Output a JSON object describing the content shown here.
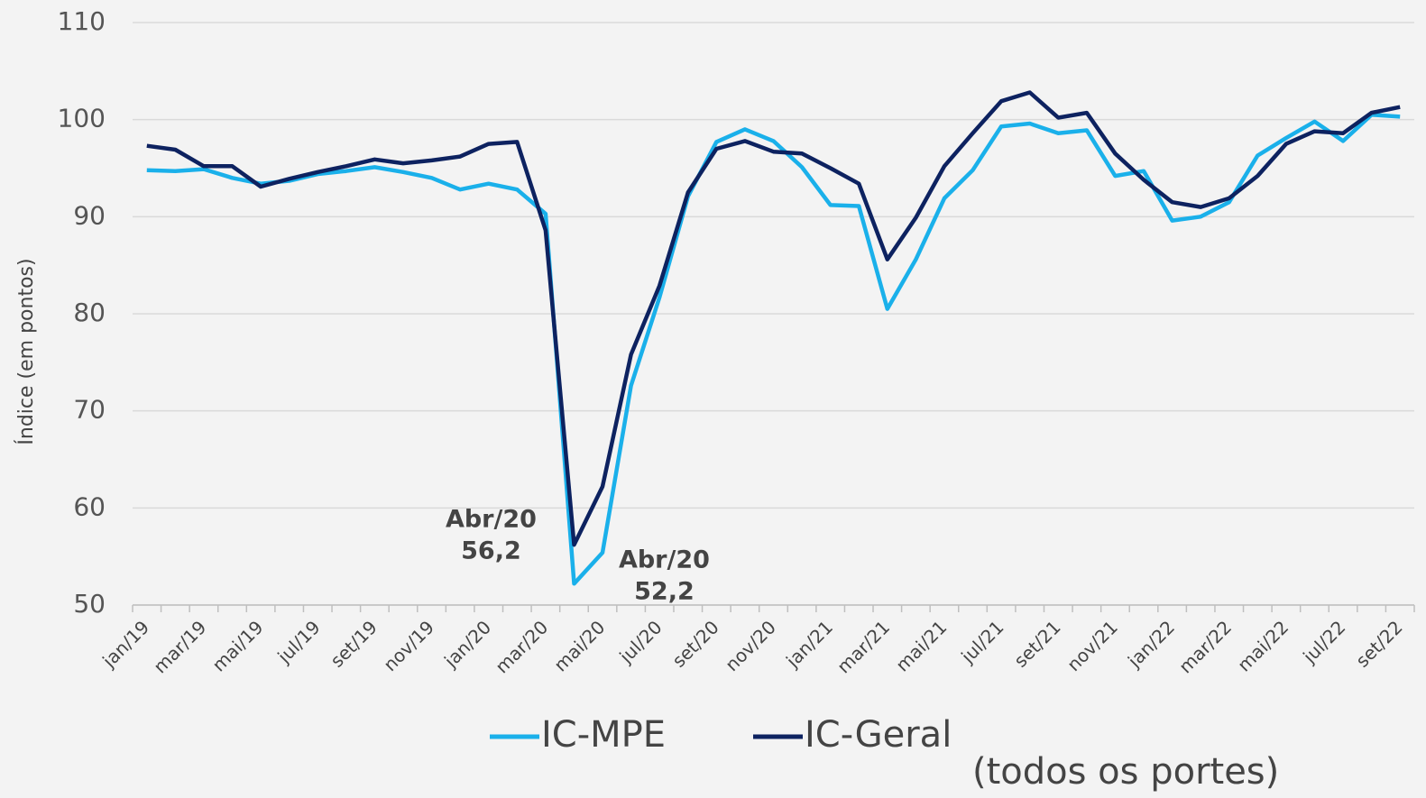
{
  "chart_data": {
    "type": "line",
    "y_axis_label": "Índice (em pontos)",
    "categories": [
      "jan/19",
      null,
      "mar/19",
      null,
      "mai/19",
      null,
      "jul/19",
      null,
      "set/19",
      null,
      "nov/19",
      null,
      "jan/20",
      null,
      "mar/20",
      null,
      "mai/20",
      null,
      "jul/20",
      null,
      "set/20",
      null,
      "nov/20",
      null,
      "jan/21",
      null,
      "mar/21",
      null,
      "mai/21",
      null,
      "jul/21",
      null,
      "set/21",
      null,
      "nov/21",
      null,
      "jan/22",
      null,
      "mar/22",
      null,
      "mai/22",
      null,
      "jul/22",
      null,
      "set/22"
    ],
    "series": [
      {
        "name": "IC-MPE",
        "color": "#1ab0ea",
        "values": [
          94.8,
          94.7,
          94.9,
          94.0,
          93.4,
          93.7,
          94.4,
          94.7,
          95.1,
          94.6,
          94.0,
          92.8,
          93.4,
          92.8,
          90.3,
          52.2,
          55.4,
          72.6,
          81.7,
          92.1,
          97.7,
          99.0,
          97.8,
          95.1,
          91.2,
          91.1,
          80.5,
          85.6,
          91.9,
          94.8,
          99.3,
          99.6,
          98.6,
          98.9,
          94.2,
          94.7,
          89.6,
          90.0,
          91.5,
          96.3,
          98.1,
          99.8,
          97.8,
          100.5,
          100.3
        ]
      },
      {
        "name": "IC-Geral",
        "color": "#0d2260",
        "values": [
          97.3,
          96.9,
          95.2,
          95.2,
          93.1,
          93.9,
          94.6,
          95.2,
          95.9,
          95.5,
          95.8,
          96.2,
          97.5,
          97.7,
          88.6,
          56.2,
          62.2,
          75.8,
          82.9,
          92.5,
          97.0,
          97.8,
          96.7,
          96.5,
          95.0,
          93.4,
          85.6,
          89.9,
          95.2,
          98.6,
          101.9,
          102.8,
          100.2,
          100.7,
          96.5,
          93.8,
          91.5,
          91.0,
          91.9,
          94.2,
          97.5,
          98.8,
          98.6,
          100.7,
          101.3
        ]
      }
    ],
    "legend_note": "(todos os portes)",
    "annotations": [
      {
        "series": 1,
        "lines": [
          "Abr/20",
          "56,2"
        ]
      },
      {
        "series": 0,
        "lines": [
          "Abr/20",
          "52,2"
        ]
      }
    ],
    "ylim": [
      50,
      110
    ],
    "yticks": [
      50,
      60,
      70,
      80,
      90,
      100,
      110
    ],
    "grid": true
  }
}
